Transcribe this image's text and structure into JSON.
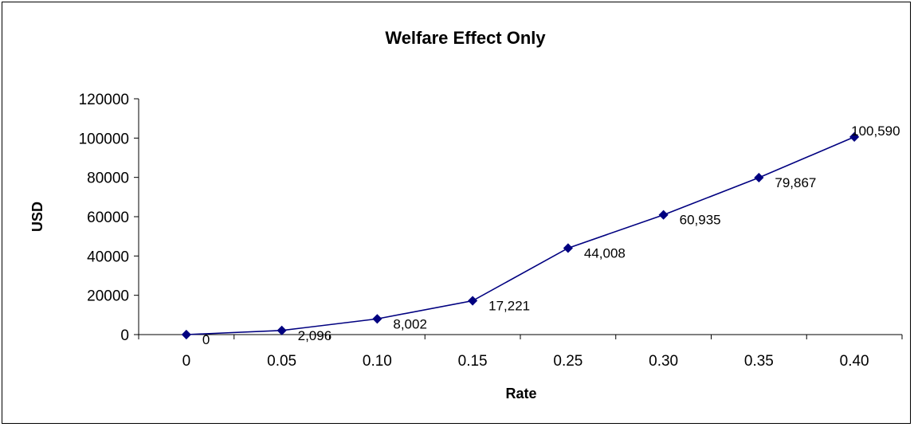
{
  "chart_data": {
    "type": "line",
    "title": "Welfare Effect Only",
    "xlabel": "Rate",
    "ylabel": "USD",
    "categories": [
      "0",
      "0.05",
      "0.10",
      "0.15",
      "0.25",
      "0.30",
      "0.35",
      "0.40"
    ],
    "series": [
      {
        "values": [
          0,
          2096,
          8002,
          17221,
          44008,
          60935,
          79867,
          100590
        ],
        "data_labels": [
          "0",
          "2,096",
          "8,002",
          "17,221",
          "44,008",
          "60,935",
          "79,867",
          "100,590"
        ],
        "color": "#000080",
        "marker": "diamond"
      }
    ],
    "y_ticks": [
      "0",
      "20000",
      "40000",
      "60000",
      "80000",
      "100000",
      "120000"
    ],
    "ylim": [
      0,
      120000
    ],
    "grid": false,
    "legend": "none"
  }
}
